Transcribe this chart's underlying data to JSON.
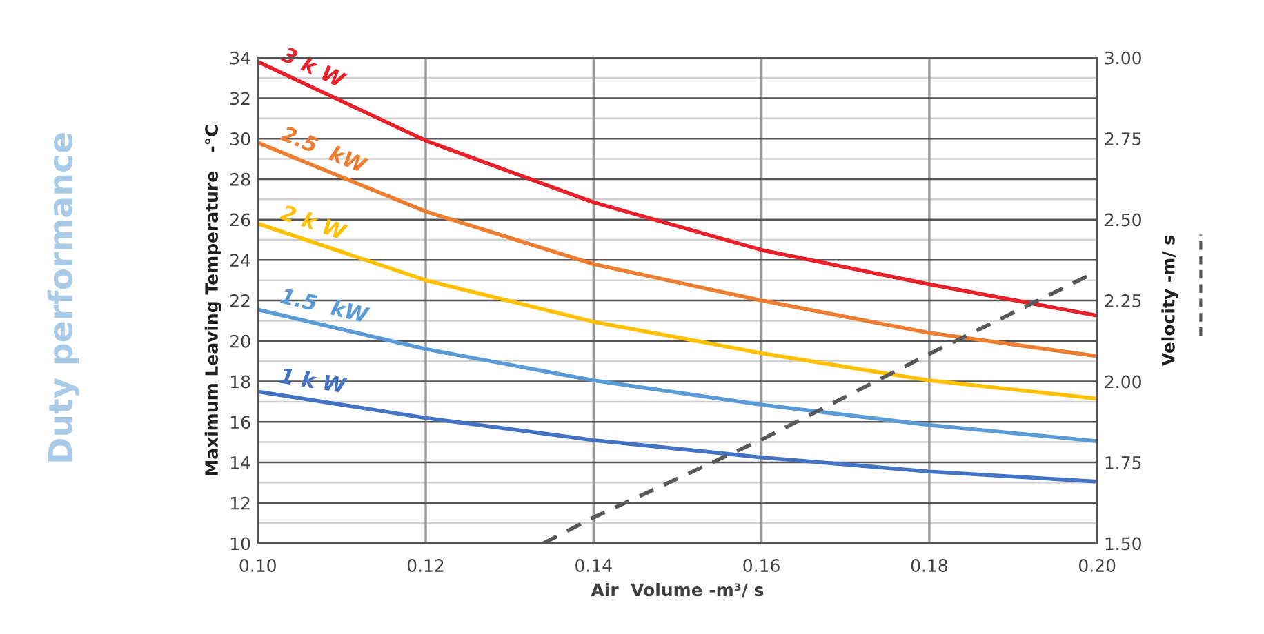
{
  "chart_data": {
    "type": "line",
    "title": "Duty performance",
    "xlabel": "Air  Volume -m³/ s",
    "ylabel": "Maximum Leaving Temperature   -°C",
    "y2label": "Velocity -m/ s",
    "x": [
      0.1,
      0.12,
      0.14,
      0.16,
      0.18,
      0.2
    ],
    "series": [
      {
        "name": "3 k W",
        "color": "#e8202a",
        "values": [
          33.8,
          29.9,
          26.85,
          24.5,
          22.8,
          21.25
        ]
      },
      {
        "name": "2.5  kW",
        "color": "#ed7d31",
        "values": [
          29.8,
          26.4,
          23.8,
          22.0,
          20.4,
          19.25
        ]
      },
      {
        "name": "2 k W",
        "color": "#ffc000",
        "values": [
          25.8,
          23.0,
          20.95,
          19.4,
          18.05,
          17.15
        ]
      },
      {
        "name": "1.5  kW",
        "color": "#5b9bd5",
        "values": [
          21.55,
          19.6,
          18.05,
          16.85,
          15.85,
          15.05
        ]
      },
      {
        "name": "1 k W",
        "color": "#4472c4",
        "values": [
          17.5,
          16.2,
          15.1,
          14.25,
          13.55,
          13.05
        ]
      },
      {
        "color": "#595959",
        "axis": "y2",
        "line_style": "dashed",
        "x": [
          0.134,
          0.14,
          0.16,
          0.18,
          0.2
        ],
        "values": [
          1.5,
          1.58,
          1.82,
          2.085,
          2.34
        ]
      }
    ],
    "xlim": [
      0.1,
      0.2
    ],
    "xticks": [
      {
        "value": 0.1,
        "label": "0.10"
      },
      {
        "value": 0.12,
        "label": "0.12"
      },
      {
        "value": 0.14,
        "label": "0.14"
      },
      {
        "value": 0.16,
        "label": "0.16"
      },
      {
        "value": 0.18,
        "label": "0.18"
      },
      {
        "value": 0.2,
        "label": "0.20"
      }
    ],
    "ylim": [
      10,
      34
    ],
    "yticks": [
      10,
      12,
      14,
      16,
      18,
      20,
      22,
      24,
      26,
      28,
      30,
      32,
      34
    ],
    "y2lim": [
      1.5,
      3.0
    ],
    "y2ticks": [
      {
        "value": 1.5,
        "label": "1.50"
      },
      {
        "value": 1.75,
        "label": "1.75"
      },
      {
        "value": 2.0,
        "label": "2.00"
      },
      {
        "value": 2.25,
        "label": "2.25"
      },
      {
        "value": 2.5,
        "label": "2.50"
      },
      {
        "value": 2.75,
        "label": "2.75"
      },
      {
        "value": 3.0,
        "label": "3.00"
      }
    ],
    "grid": true,
    "line_style": "solid",
    "marker": "none",
    "legend": false
  }
}
